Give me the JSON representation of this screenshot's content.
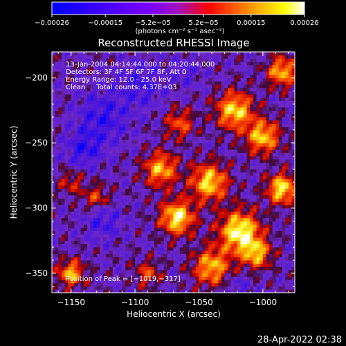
{
  "chart_data": {
    "type": "heatmap",
    "title": "Reconstructed RHESSI Image",
    "xlabel": "Heliocentric X (arcsec)",
    "ylabel": "Heliocentric Y (arcsec)",
    "xlim": [
      -1165,
      -975
    ],
    "ylim": [
      -365,
      -180
    ],
    "x_ticks": [
      {
        "value": -1150,
        "label": "−1150"
      },
      {
        "value": -1100,
        "label": "−1100"
      },
      {
        "value": -1050,
        "label": "−1050"
      },
      {
        "value": -1000,
        "label": "−1000"
      }
    ],
    "y_ticks": [
      {
        "value": -200,
        "label": "−200"
      },
      {
        "value": -250,
        "label": "−250"
      },
      {
        "value": -300,
        "label": "−300"
      },
      {
        "value": -350,
        "label": "−350"
      }
    ],
    "colorbar": {
      "range": [
        -0.00026,
        0.00026
      ],
      "tick_values": [
        -0.00026,
        -0.00015,
        -5.2e-05,
        5.2e-05,
        0.00015,
        0.00026
      ],
      "tick_labels": [
        "−0.00026",
        "−0.00015",
        "−5.2e−05",
        "5.2e−05",
        "0.00015",
        "0.00026"
      ],
      "units": "(photons cm⁻² s⁻¹ asec⁻²)",
      "colors": [
        "#0000ff",
        "#7a00ff",
        "#ff0000",
        "#ffff00",
        "#ffffff"
      ]
    },
    "annotations": [
      "13-Jan-2004 04:14:44.000 to 04:20:44.000",
      "Detectors: 3F 4F 5F 6F 7F 8F, Att 0",
      "Energy Range: 12.0 - 25.0 keV",
      "Clean     Total counts: 4.37E+03"
    ],
    "peak_label": "Position of Peak = [−1019,−317]",
    "peak": {
      "x": -1019,
      "y": -317
    },
    "blobs": [
      {
        "x": -1018,
        "y": -318,
        "amp": 1.0,
        "s": 11
      },
      {
        "x": -1067,
        "y": -307,
        "amp": 0.95,
        "s": 9
      },
      {
        "x": -1042,
        "y": -280,
        "amp": 0.85,
        "s": 10
      },
      {
        "x": -1080,
        "y": -270,
        "amp": 0.75,
        "s": 9
      },
      {
        "x": -1022,
        "y": -225,
        "amp": 0.85,
        "s": 10
      },
      {
        "x": -1000,
        "y": -245,
        "amp": 0.8,
        "s": 9
      },
      {
        "x": -985,
        "y": -285,
        "amp": 0.9,
        "s": 8
      },
      {
        "x": -1040,
        "y": -345,
        "amp": 0.75,
        "s": 10
      },
      {
        "x": -1005,
        "y": -335,
        "amp": 0.7,
        "s": 8
      },
      {
        "x": -985,
        "y": -195,
        "amp": 0.75,
        "s": 8
      },
      {
        "x": -1150,
        "y": -350,
        "amp": 0.75,
        "s": 7
      },
      {
        "x": -1130,
        "y": -292,
        "amp": 0.45,
        "s": 7
      },
      {
        "x": -1150,
        "y": -280,
        "amp": 0.35,
        "s": 7
      },
      {
        "x": -1065,
        "y": -235,
        "amp": 0.5,
        "s": 8
      },
      {
        "x": -1090,
        "y": -350,
        "amp": 0.45,
        "s": 7
      },
      {
        "x": -1125,
        "y": -230,
        "amp": -0.35,
        "s": 14
      },
      {
        "x": -1140,
        "y": -255,
        "amp": -0.35,
        "s": 10
      },
      {
        "x": -1095,
        "y": -205,
        "amp": -0.3,
        "s": 12
      },
      {
        "x": -1125,
        "y": -310,
        "amp": -0.3,
        "s": 10
      },
      {
        "x": -1060,
        "y": -195,
        "amp": -0.2,
        "s": 8
      },
      {
        "x": -1020,
        "y": -360,
        "amp": -0.2,
        "s": 7
      }
    ]
  },
  "footer": {
    "timestamp": "28-Apr-2022 02:38"
  }
}
